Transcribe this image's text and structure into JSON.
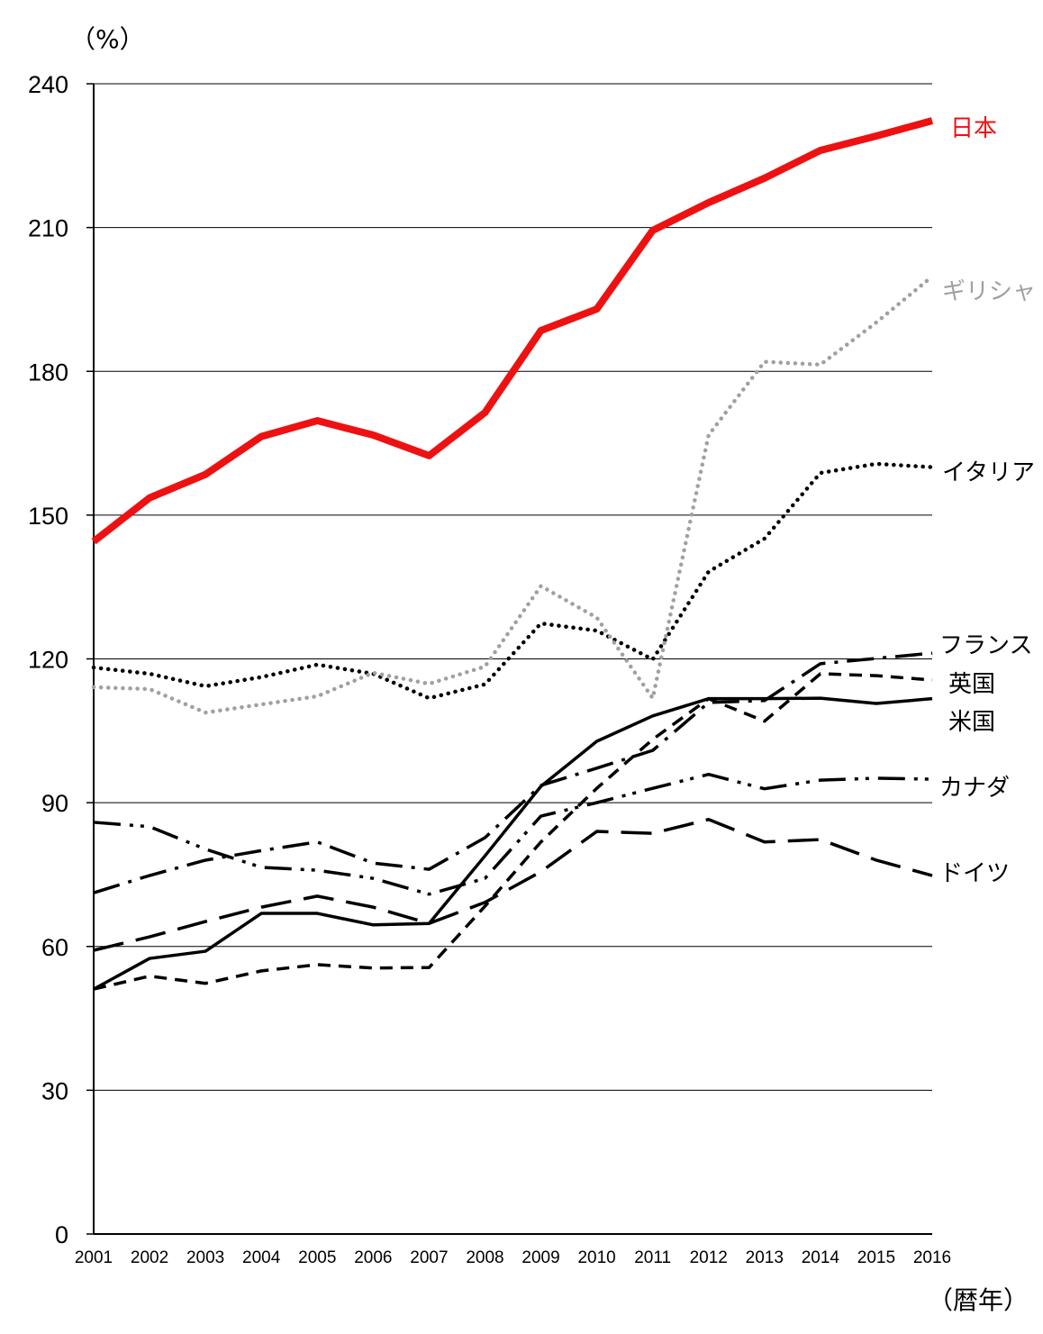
{
  "chart_data": {
    "type": "line",
    "ylabel": "（%）",
    "xlabel": "（暦年）",
    "ylim": [
      0,
      240
    ],
    "yticks": [
      0,
      30,
      60,
      90,
      120,
      150,
      180,
      210,
      240
    ],
    "grid": true,
    "legend": "right-end line labels",
    "x": [
      2001,
      2002,
      2003,
      2004,
      2005,
      2006,
      2007,
      2008,
      2009,
      2010,
      2011,
      2012,
      2013,
      2014,
      2015,
      2016
    ],
    "series": [
      {
        "name": "日本",
        "color": "#ee1111",
        "style": "solid-thick",
        "values": [
          144.5,
          153.6,
          158.5,
          166.4,
          169.7,
          166.7,
          162.4,
          171.4,
          188.5,
          193.0,
          209.4,
          215.2,
          220.3,
          226.1,
          229.1,
          232.3
        ]
      },
      {
        "name": "ギリシャ",
        "color": "#a0a0a0",
        "style": "dotted",
        "values": [
          114.1,
          113.7,
          108.8,
          110.5,
          112.2,
          117.1,
          114.8,
          118.4,
          135.2,
          128.6,
          111.8,
          166.7,
          182.0,
          181.4,
          190.2,
          199.8
        ]
      },
      {
        "name": "イタリア",
        "color": "#000000",
        "style": "dotted",
        "values": [
          118.2,
          116.9,
          114.3,
          116.2,
          118.8,
          116.9,
          111.8,
          114.7,
          127.4,
          125.9,
          119.9,
          138.2,
          145.1,
          158.8,
          160.7,
          160.0
        ]
      },
      {
        "name": "フランス",
        "color": "#000000",
        "style": "dash-dot",
        "values": [
          71.2,
          74.8,
          78.0,
          80.0,
          81.8,
          77.4,
          76.1,
          82.7,
          93.6,
          97.2,
          100.9,
          110.9,
          111.3,
          119.0,
          120.1,
          121.2
        ]
      },
      {
        "name": "英国",
        "color": "#000000",
        "style": "short-dash",
        "values": [
          51.1,
          53.8,
          52.3,
          54.9,
          56.2,
          55.5,
          55.6,
          68.4,
          81.8,
          93.0,
          103.2,
          111.7,
          107.0,
          116.9,
          116.5,
          115.6
        ]
      },
      {
        "name": "米国",
        "color": "#000000",
        "style": "solid",
        "values": [
          51.1,
          57.5,
          59.0,
          66.9,
          66.9,
          64.5,
          64.8,
          78.9,
          93.4,
          102.8,
          108.1,
          111.7,
          111.7,
          111.8,
          110.7,
          111.7
        ]
      },
      {
        "name": "カナダ",
        "color": "#000000",
        "style": "dash-dot-dot",
        "values": [
          85.9,
          85.0,
          80.3,
          76.5,
          75.9,
          74.2,
          70.9,
          74.2,
          87.2,
          90.0,
          93.0,
          95.9,
          92.9,
          94.7,
          95.1,
          94.9
        ]
      },
      {
        "name": "ドイツ",
        "color": "#000000",
        "style": "long-dash",
        "values": [
          59.2,
          62.0,
          65.2,
          68.2,
          70.5,
          68.2,
          64.8,
          69.2,
          75.6,
          84.0,
          83.6,
          86.5,
          81.8,
          82.3,
          78.0,
          74.8
        ]
      }
    ]
  }
}
